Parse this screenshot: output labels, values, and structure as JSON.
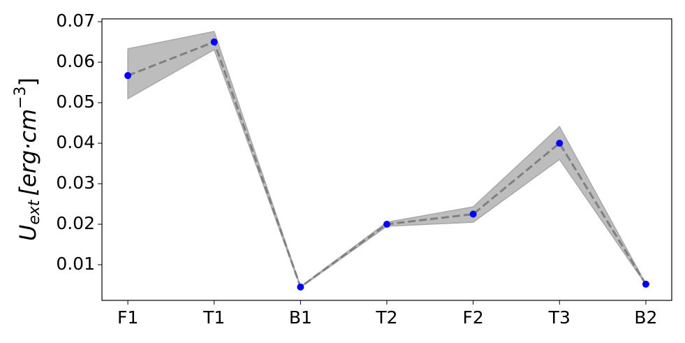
{
  "chart_data": {
    "type": "line",
    "categories": [
      "F1",
      "T1",
      "B1",
      "T2",
      "F2",
      "T3",
      "B2"
    ],
    "values": [
      0.0567,
      0.065,
      0.0045,
      0.02,
      0.0225,
      0.04,
      0.0052
    ],
    "band_lower": [
      0.051,
      0.0631,
      0.0044,
      0.0195,
      0.0205,
      0.036,
      0.0051
    ],
    "band_upper": [
      0.0633,
      0.0676,
      0.0046,
      0.0205,
      0.0243,
      0.0441,
      0.0053
    ],
    "color": "#0000ff",
    "line_color": "#808080",
    "band_color": "#bdbdbd",
    "ylabel": {
      "symbol": "U",
      "subscript": "ext",
      "unit": "[erg·cm",
      "superscript": "−3",
      "closing": "]"
    },
    "ylim": [
      0.0012,
      0.0707
    ],
    "yticks": [
      0.01,
      0.02,
      0.03,
      0.04,
      0.05,
      0.06,
      0.07
    ]
  }
}
